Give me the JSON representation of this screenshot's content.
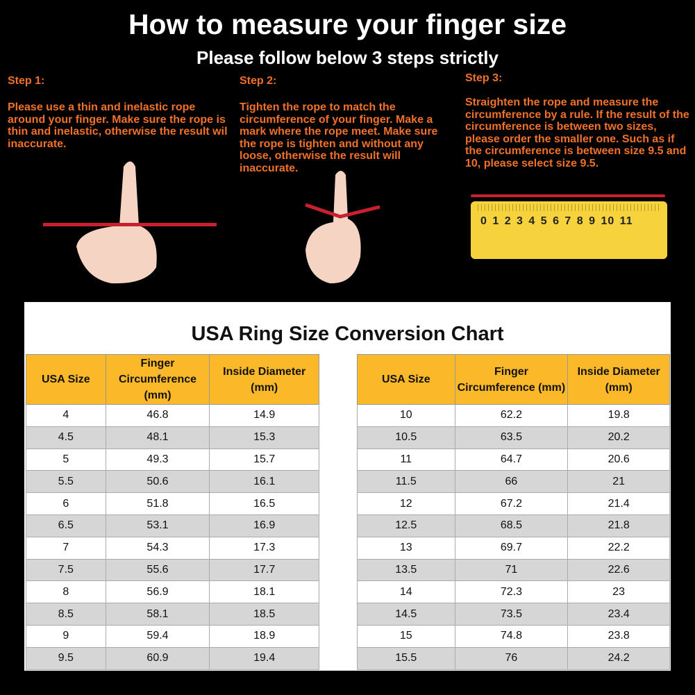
{
  "title": "How to measure your finger size",
  "subtitle": "Please follow below 3 steps strictly",
  "steps": [
    {
      "heading": "Step 1:",
      "text": "Please use a thin and inelastic rope around your finger. Make sure the rope is thin and inelastic, otherwise the result wil inaccurate."
    },
    {
      "heading": "Step 2:",
      "text": "Tighten the rope to match the circumference of your finger. Make a mark where the rope meet. Make sure the rope is tighten and without any loose, otherwise the result will inaccurate."
    },
    {
      "heading": "Step 3:",
      "text": "Straighten the rope and measure the circumference by a rule. If the result of the circumference is between two sizes, please order the smaller one. Such as if the circumference is between size 9.5 and 10, please select size 9.5."
    }
  ],
  "ruler": {
    "numbers": "0 1 2 3 4 5 6 7 8 9 10 11"
  },
  "chart": {
    "title": "USA Ring Size Conversion Chart",
    "headers": [
      "USA Size",
      "Finger Circumference (mm)",
      "Inside Diameter (mm)"
    ],
    "left": [
      [
        "4",
        "46.8",
        "14.9"
      ],
      [
        "4.5",
        "48.1",
        "15.3"
      ],
      [
        "5",
        "49.3",
        "15.7"
      ],
      [
        "5.5",
        "50.6",
        "16.1"
      ],
      [
        "6",
        "51.8",
        "16.5"
      ],
      [
        "6.5",
        "53.1",
        "16.9"
      ],
      [
        "7",
        "54.3",
        "17.3"
      ],
      [
        "7.5",
        "55.6",
        "17.7"
      ],
      [
        "8",
        "56.9",
        "18.1"
      ],
      [
        "8.5",
        "58.1",
        "18.5"
      ],
      [
        "9",
        "59.4",
        "18.9"
      ],
      [
        "9.5",
        "60.9",
        "19.4"
      ]
    ],
    "right": [
      [
        "10",
        "62.2",
        "19.8"
      ],
      [
        "10.5",
        "63.5",
        "20.2"
      ],
      [
        "11",
        "64.7",
        "20.6"
      ],
      [
        "11.5",
        "66",
        "21"
      ],
      [
        "12",
        "67.2",
        "21.4"
      ],
      [
        "12.5",
        "68.5",
        "21.8"
      ],
      [
        "13",
        "69.7",
        "22.2"
      ],
      [
        "13.5",
        "71",
        "22.6"
      ],
      [
        "14",
        "72.3",
        "23"
      ],
      [
        "14.5",
        "73.5",
        "23.4"
      ],
      [
        "15",
        "74.8",
        "23.8"
      ],
      [
        "15.5",
        "76",
        "24.2"
      ]
    ]
  },
  "colors": {
    "header": "#fbb829",
    "step_text": "#f0712a",
    "rope": "#c8202e"
  }
}
